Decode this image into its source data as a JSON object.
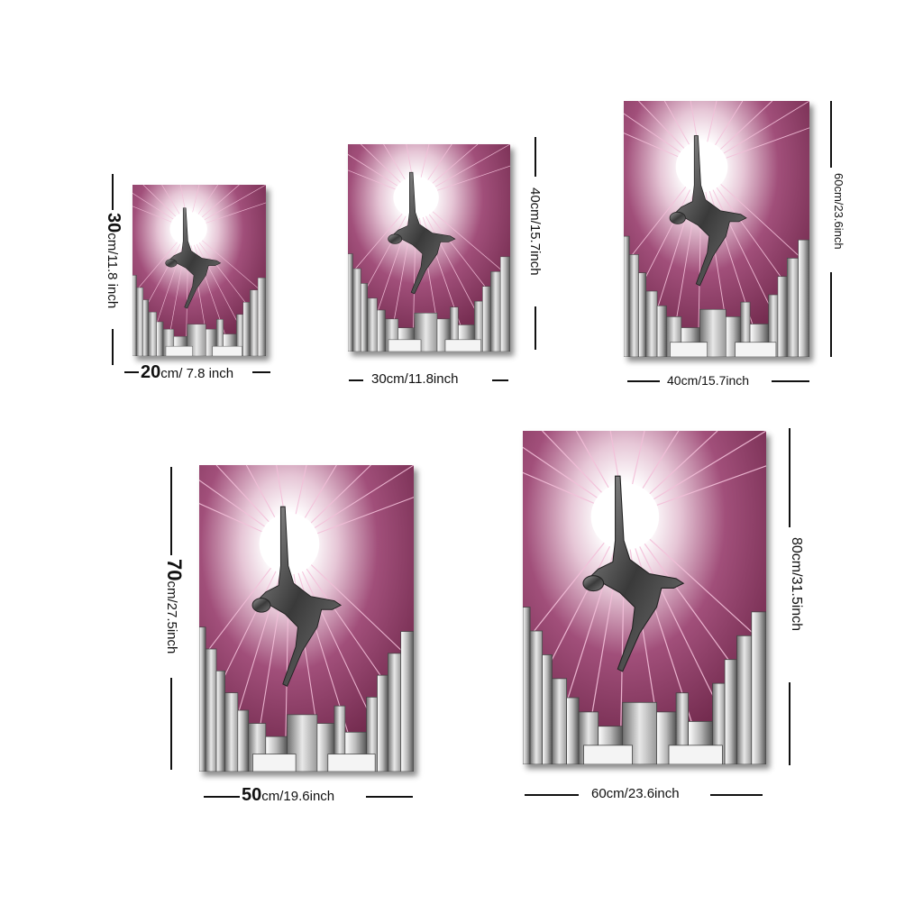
{
  "sizes": [
    {
      "width_label_big": "20",
      "width_label_small": "cm/ 7.8 inch",
      "height_label_big": "30",
      "height_label_small": "cm/11.8 inch"
    },
    {
      "width_label": "30cm/11.8inch",
      "height_label": "40cm/15.7inch"
    },
    {
      "width_label": "40cm/15.7inch",
      "height_label": "60cm/23.6inch"
    },
    {
      "width_label_big": "50",
      "width_label_small": "cm/19.6inch",
      "height_label_big": "70",
      "height_label_small": "cm/27.5inch"
    },
    {
      "width_label": "60cm/23.6inch",
      "height_label": "80cm/31.5inch"
    }
  ],
  "colors": {
    "background": "#7a2f55",
    "glow": "#ffffff",
    "rays": "#f3bfd9",
    "buildings": "#8a8a8a"
  }
}
